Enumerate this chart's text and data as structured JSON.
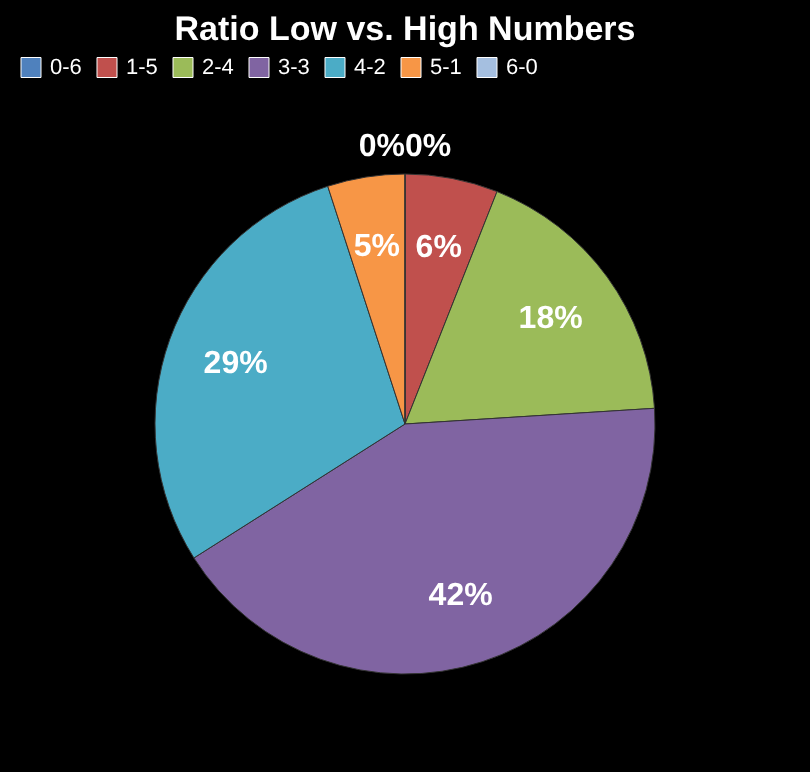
{
  "chart_data": {
    "type": "pie",
    "title": "Ratio Low vs. High Numbers",
    "categories": [
      "0-6",
      "1-5",
      "2-4",
      "3-3",
      "4-2",
      "5-1",
      "6-0"
    ],
    "values": [
      0,
      6,
      18,
      42,
      29,
      5,
      0
    ],
    "value_labels": [
      "0%",
      "6%",
      "18%",
      "42%",
      "29%",
      "5%",
      "0%"
    ],
    "colors": [
      "#4f81bd",
      "#c0504d",
      "#9bbb59",
      "#8064a2",
      "#4bacc6",
      "#f79646",
      "#a5bfe0"
    ],
    "legend": "top"
  }
}
